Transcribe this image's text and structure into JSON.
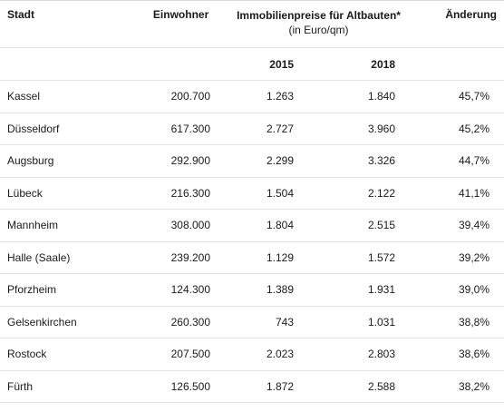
{
  "headers": {
    "city": "Stadt",
    "population": "Einwohner",
    "prices_title": "Immobilienpreise für Altbauten*",
    "prices_sub": "(in Euro/qm)",
    "change": "Änderung",
    "year1": "2015",
    "year2": "2018"
  },
  "rows": [
    {
      "city": "Kassel",
      "population": "200.700",
      "p2015": "1.263",
      "p2018": "1.840",
      "change": "45,7%"
    },
    {
      "city": "Düsseldorf",
      "population": "617.300",
      "p2015": "2.727",
      "p2018": "3.960",
      "change": "45,2%"
    },
    {
      "city": "Augsburg",
      "population": "292.900",
      "p2015": "2.299",
      "p2018": "3.326",
      "change": "44,7%"
    },
    {
      "city": "Lübeck",
      "population": "216.300",
      "p2015": "1.504",
      "p2018": "2.122",
      "change": "41,1%"
    },
    {
      "city": "Mannheim",
      "population": "308.000",
      "p2015": "1.804",
      "p2018": "2.515",
      "change": "39,4%"
    },
    {
      "city": "Halle (Saale)",
      "population": "239.200",
      "p2015": "1.129",
      "p2018": "1.572",
      "change": "39,2%"
    },
    {
      "city": "Pforzheim",
      "population": "124.300",
      "p2015": "1.389",
      "p2018": "1.931",
      "change": "39,0%"
    },
    {
      "city": "Gelsenkirchen",
      "population": "260.300",
      "p2015": "743",
      "p2018": "1.031",
      "change": "38,8%"
    },
    {
      "city": "Rostock",
      "population": "207.500",
      "p2015": "2.023",
      "p2018": "2.803",
      "change": "38,6%"
    },
    {
      "city": "Fürth",
      "population": "126.500",
      "p2015": "1.872",
      "p2018": "2.588",
      "change": "38,2%"
    }
  ]
}
